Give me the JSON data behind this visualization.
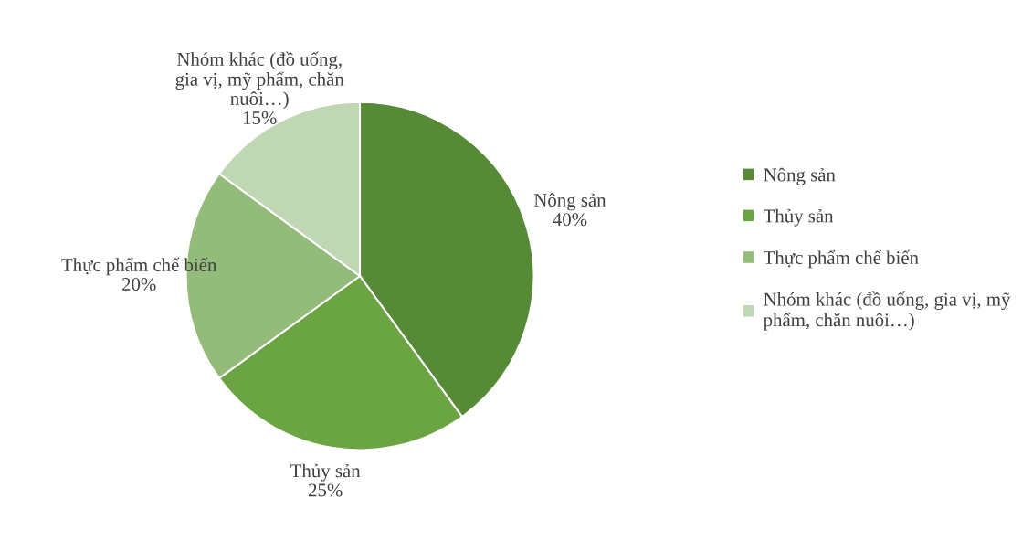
{
  "chart_data": {
    "type": "pie",
    "categories": [
      "Nông sản",
      "Thủy sản",
      "Thực phẩm chế biến",
      "Nhóm khác (đồ uống, gia vị, mỹ phẩm, chăn nuôi…)"
    ],
    "values": [
      40,
      25,
      20,
      15
    ],
    "value_labels": [
      "40%",
      "25%",
      "20%",
      "15%"
    ],
    "colors": [
      "#568a37",
      "#6aa443",
      "#93bb7a",
      "#c0d7b3"
    ],
    "legend": "right"
  }
}
